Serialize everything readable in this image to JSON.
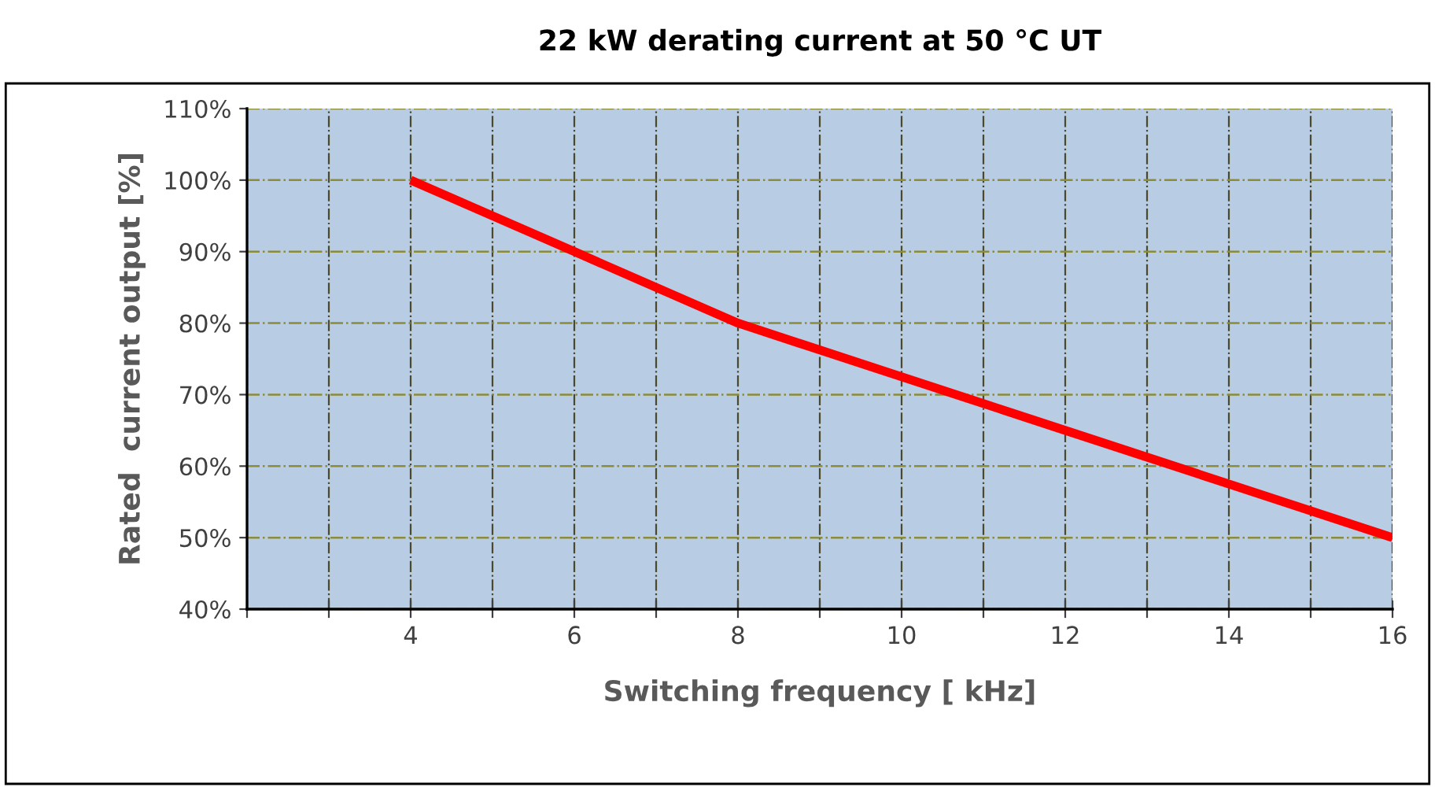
{
  "chart_data": {
    "type": "line",
    "title": "22 kW derating current at 50 °C UT",
    "xlabel": "Switching frequency [ kHz]",
    "ylabel": "Rated  current output [%]",
    "x": [
      4,
      6,
      8,
      10,
      12,
      14,
      16
    ],
    "series": [
      {
        "color": "#ff0000",
        "values": [
          100,
          90,
          80,
          72.5,
          65,
          57.5,
          50
        ]
      }
    ],
    "xlim": [
      2,
      16
    ],
    "xticks": [
      {
        "value": 2,
        "label": null
      },
      {
        "value": 3,
        "label": null
      },
      4,
      {
        "value": 5,
        "label": null
      },
      6,
      {
        "value": 7,
        "label": null
      },
      8,
      {
        "value": 9,
        "label": null
      },
      10,
      {
        "value": 11,
        "label": null
      },
      12,
      {
        "value": 13,
        "label": null
      },
      14,
      {
        "value": 15,
        "label": null
      },
      16
    ],
    "ylim": [
      40,
      110
    ],
    "yticks": [
      {
        "value": 40,
        "label": "40%"
      },
      {
        "value": 50,
        "label": "50%"
      },
      {
        "value": 60,
        "label": "60%"
      },
      {
        "value": 70,
        "label": "70%"
      },
      {
        "value": 80,
        "label": "80%"
      },
      {
        "value": 90,
        "label": "90%"
      },
      {
        "value": 100,
        "label": "100%"
      },
      {
        "value": 110,
        "label": "110%"
      }
    ],
    "grid": true,
    "marker": "none",
    "line_style": "solid",
    "legend": false
  }
}
